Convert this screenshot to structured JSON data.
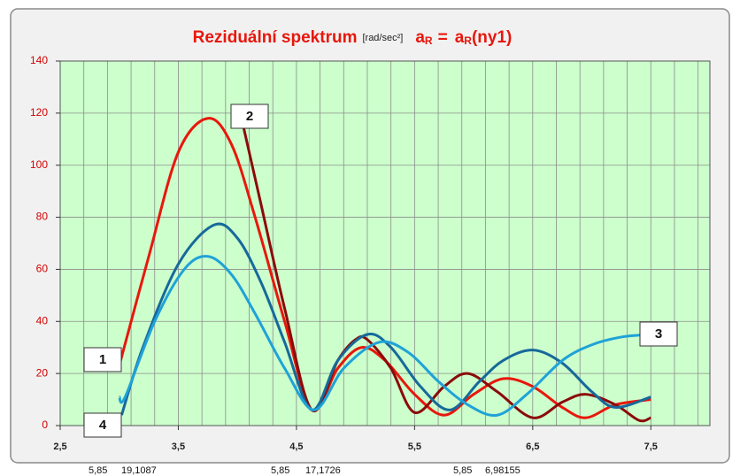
{
  "chart_data": {
    "type": "line",
    "title": "Reziduální spektrum",
    "title_units": "[rad/sec²]",
    "formula": {
      "lhs": "a",
      "lhs_sub": "R",
      "eq": "=",
      "rhs": "a",
      "rhs_sub": "R",
      "arg": "(ny1)"
    },
    "xlim": [
      2.5,
      8
    ],
    "xticks": [
      {
        "value": 2.5,
        "label": "2,5"
      },
      {
        "value": 3.5,
        "label": "3,5"
      },
      {
        "value": 4.5,
        "label": "4,5"
      },
      {
        "value": 5.5,
        "label": "5,5"
      },
      {
        "value": 6.5,
        "label": "6,5"
      },
      {
        "value": 7.5,
        "label": "7,5"
      }
    ],
    "ylim": [
      0,
      140
    ],
    "yticks": [
      0,
      20,
      40,
      60,
      80,
      100,
      120,
      140
    ],
    "grid": true,
    "series": [
      {
        "color": "#e8170c",
        "x": [
          3.0,
          3.25,
          3.5,
          3.75,
          3.95,
          4.15,
          4.4,
          4.63,
          4.85,
          5.05,
          5.25,
          5.5,
          5.75,
          6.0,
          6.25,
          6.5,
          6.75,
          6.95,
          7.2,
          7.5
        ],
        "values": [
          23,
          65,
          105,
          118,
          108,
          80,
          40,
          6,
          22,
          30,
          25,
          12,
          4,
          12,
          18,
          15,
          7,
          3,
          8,
          10
        ]
      },
      {
        "color": "#8b0a0a",
        "x": [
          4.05,
          4.2,
          4.4,
          4.63,
          4.85,
          5.0,
          5.1,
          5.3,
          5.5,
          5.75,
          5.95,
          6.2,
          6.5,
          6.75,
          6.95,
          7.2,
          7.4,
          7.5
        ],
        "values": [
          115,
          85,
          45,
          6,
          25,
          33,
          33,
          22,
          5,
          15,
          20,
          13,
          3,
          9,
          12,
          8,
          2,
          3
        ]
      },
      {
        "color": "#16699a",
        "x": [
          3.02,
          3.2,
          3.5,
          3.8,
          4.0,
          4.2,
          4.4,
          4.63,
          4.85,
          5.1,
          5.3,
          5.55,
          5.8,
          6.05,
          6.25,
          6.5,
          6.75,
          7.0,
          7.2,
          7.5
        ],
        "values": [
          4,
          30,
          62,
          77,
          72,
          55,
          32,
          6,
          25,
          35,
          30,
          15,
          6,
          17,
          25,
          29,
          24,
          13,
          7,
          11
        ]
      },
      {
        "color": "#1fa2d8",
        "x": [
          3.0,
          3.05,
          3.3,
          3.55,
          3.75,
          3.95,
          4.15,
          4.4,
          4.65,
          4.9,
          5.2,
          5.45,
          5.7,
          5.95,
          6.2,
          6.45,
          6.75,
          7.0,
          7.25,
          7.5
        ],
        "values": [
          11,
          11,
          40,
          60,
          65,
          58,
          43,
          22,
          6,
          22,
          32,
          28,
          17,
          8,
          4,
          12,
          25,
          31,
          34,
          35
        ]
      }
    ],
    "annotations": [
      "1",
      "2",
      "3",
      "4"
    ],
    "footer": [
      "5,85",
      "19,1087",
      "5,85",
      "17,1726",
      "5,85",
      "6,98155"
    ]
  }
}
